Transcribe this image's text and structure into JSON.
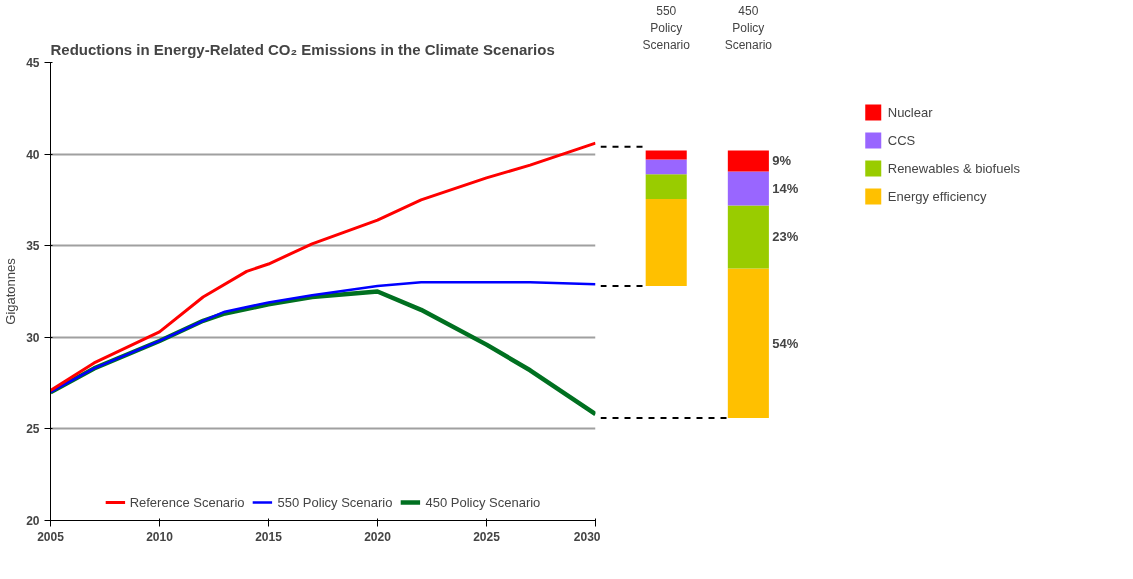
{
  "chart_data": [
    {
      "type": "line",
      "title": "Reductions in Energy-Related CO₂ Emissions in the Climate Scenarios",
      "ylabel": "Gigatonnes",
      "xlim": [
        2005,
        2030
      ],
      "xticks": [
        2005,
        2010,
        2015,
        2020,
        2025,
        2030
      ],
      "ylim": [
        20,
        45
      ],
      "yticks": [
        20,
        25,
        30,
        35,
        40,
        45
      ],
      "grid": "y",
      "legend": "bottom",
      "line_style": "solid",
      "series": [
        {
          "name": "Reference Scenario",
          "color": "#ff0000",
          "x": [
            2005,
            2007,
            2010,
            2012,
            2014,
            2015,
            2017,
            2020,
            2022,
            2025,
            2027,
            2030
          ],
          "values": [
            27.1,
            28.6,
            30.3,
            32.2,
            33.6,
            34.0,
            35.1,
            36.4,
            37.5,
            38.7,
            39.4,
            40.6
          ]
        },
        {
          "name": "550 Policy Scenario",
          "color": "#0000ff",
          "x": [
            2005,
            2007,
            2010,
            2012,
            2013,
            2015,
            2017,
            2020,
            2022,
            2023,
            2025,
            2027,
            2030
          ],
          "values": [
            27.0,
            28.3,
            29.8,
            30.9,
            31.4,
            31.9,
            32.3,
            32.8,
            33.0,
            33.0,
            33.0,
            33.0,
            32.9
          ]
        },
        {
          "name": "450 Policy Scenario",
          "color": "#007020",
          "x": [
            2005,
            2007,
            2010,
            2012,
            2013,
            2015,
            2017,
            2020,
            2022,
            2025,
            2027,
            2030
          ],
          "values": [
            27.0,
            28.3,
            29.8,
            30.9,
            31.3,
            31.8,
            32.2,
            32.5,
            31.5,
            29.6,
            28.2,
            25.8
          ]
        }
      ]
    },
    {
      "type": "bar",
      "categories": [
        "550 Policy Scenario",
        "450 Policy Scenario"
      ],
      "ylim": [
        20,
        45
      ],
      "yticks": [
        20,
        25,
        30,
        35,
        40,
        45
      ],
      "tick_labels": "x",
      "legend": "right",
      "ref_lines": [
        {
          "axis": "y",
          "value": 40.4,
          "line_style": "dashed",
          "color": "#000000"
        },
        {
          "axis": "y",
          "value": 32.8,
          "line_style": "dashed",
          "color": "#000000"
        },
        {
          "axis": "y",
          "value": 25.6,
          "line_style": "dashed",
          "color": "#000000"
        }
      ],
      "annotations": [
        "9%",
        "14%",
        "23%",
        "54%"
      ],
      "series": [
        {
          "name": "Energy efficiency",
          "color": "#ffc000",
          "base": [
            32.8,
            25.6
          ],
          "values": [
            4.75,
            8.15
          ]
        },
        {
          "name": "Renewables & biofuels",
          "color": "#99cc00",
          "base": [
            37.55,
            33.75
          ],
          "values": [
            1.35,
            3.45
          ]
        },
        {
          "name": "CCS",
          "color": "#9966ff",
          "base": [
            38.9,
            37.2
          ],
          "values": [
            0.8,
            1.85
          ]
        },
        {
          "name": "Nuclear",
          "color": "#ff0000",
          "base": [
            39.7,
            39.05
          ],
          "values": [
            0.5,
            1.15
          ]
        }
      ]
    }
  ]
}
